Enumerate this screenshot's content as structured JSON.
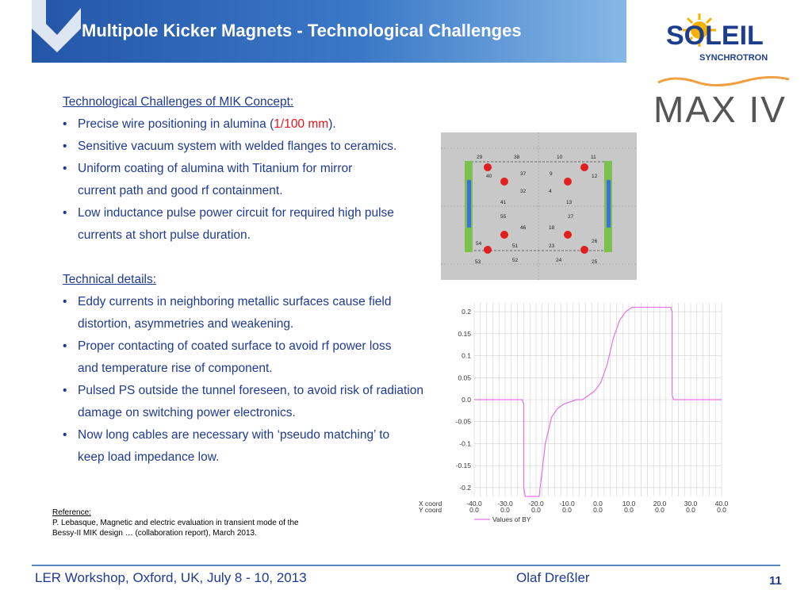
{
  "header": {
    "title": "Multipole Kicker Magnets - Technological Challenges"
  },
  "logos": {
    "soleil_text": "SOLEIL",
    "soleil_sub": "SYNCHROTRON",
    "max_text": "MAX IV"
  },
  "section1": {
    "title": "Technological Challenges of MIK Concept:",
    "bullet1_pre": "Precise wire positioning in alumina (",
    "bullet1_red": "1/100 mm",
    "bullet1_post": ").",
    "bullets": [
      "Sensitive vacuum system with welded flanges to ceramics.",
      "Uniform coating of alumina with Titanium for mirror current path and good rf containment.",
      "Low inductance pulse power circuit for required high pulse currents at short pulse duration."
    ]
  },
  "section2": {
    "title": "Technical details:",
    "bullets": [
      "Eddy currents in neighboring metallic surfaces cause field distortion, asymmetries and weakening.",
      "Proper contacting of coated surface to avoid rf power loss and temperature rise of component.",
      "Pulsed PS outside the tunnel foreseen, to avoid risk of radiation damage on switching power electronics.",
      "Now long cables are necessary with ‘pseudo matching’ to keep load impedance low."
    ]
  },
  "reference": {
    "title": "Reference:",
    "line1": "P. Lebasque, Magnetic and electric evaluation in transient mode of the",
    "line2": "Bessy-II MIK design … (collaboration report), March 2013."
  },
  "magnet_figure": {
    "labels": [
      "29",
      "38",
      "10",
      "11",
      "40",
      "37",
      "9",
      "12",
      "32",
      "4",
      "41",
      "13",
      "55",
      "27",
      "46",
      "18",
      "54",
      "51",
      "23",
      "26",
      "53",
      "52",
      "24",
      "25"
    ]
  },
  "chart_data": {
    "type": "line",
    "yticks": [
      "0.2",
      "0.15",
      "0.1",
      "0.05",
      "0.0",
      "-0.05",
      "-0.1",
      "-0.15",
      "-0.2"
    ],
    "xticks": [
      "-40.0",
      "-30.0",
      "-20.0",
      "-10.0",
      "0.0",
      "10.0",
      "20.0",
      "30.0",
      "40.0"
    ],
    "xticks2": [
      "0.0",
      "0.0",
      "0.0",
      "0.0",
      "0.0",
      "0.0",
      "0.0",
      "0.0",
      "0.0"
    ],
    "row_labels": [
      "X coord",
      "Y coord"
    ],
    "legend": "Values of BY",
    "color": "#e870e8",
    "xlim": [
      -40,
      40
    ],
    "ylim": [
      -0.22,
      0.22
    ],
    "series": [
      {
        "name": "Values of BY",
        "x": [
          -40,
          -25,
          -24.5,
          -24,
          -24,
          -23.5,
          -21,
          -19,
          -17,
          -15,
          -13,
          -11,
          -9,
          -7,
          -5,
          -3,
          -1,
          1,
          3,
          5,
          7,
          9,
          11,
          13,
          15,
          17,
          19,
          21,
          23.5,
          24,
          24,
          24.5,
          25,
          40
        ],
        "y": [
          0,
          0,
          0,
          -0.01,
          -0.2,
          -0.22,
          -0.22,
          -0.22,
          -0.1,
          -0.04,
          -0.02,
          -0.01,
          -0.005,
          0,
          0,
          0.01,
          0.02,
          0.04,
          0.08,
          0.14,
          0.18,
          0.2,
          0.21,
          0.21,
          0.21,
          0.21,
          0.21,
          0.21,
          0.21,
          0.2,
          0.01,
          0,
          0,
          0
        ]
      }
    ]
  },
  "footer": {
    "event": "LER Workshop, Oxford, UK, July 8 - 10, 2013",
    "author": "Olaf Dreßler",
    "page": "11"
  }
}
